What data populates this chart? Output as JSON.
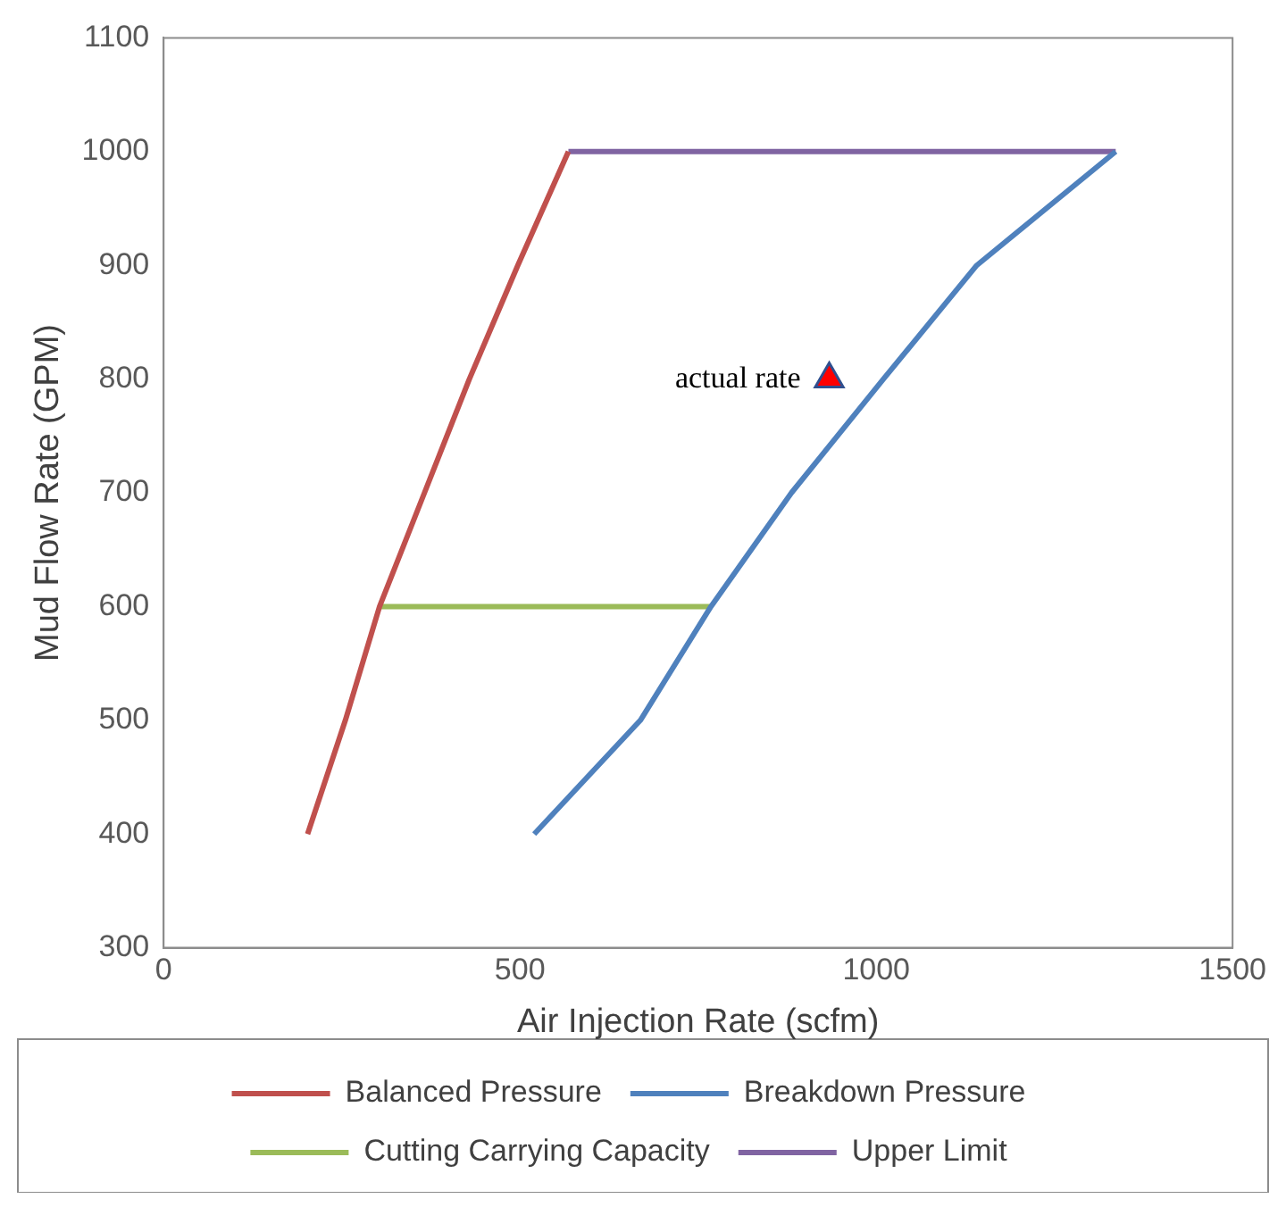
{
  "chart_data": {
    "type": "line",
    "xlabel": "Air Injection Rate (scfm)",
    "ylabel": "Mud Flow Rate (GPM)",
    "xlim": [
      0,
      1500
    ],
    "xticks": [
      0,
      500,
      1000,
      1500
    ],
    "ylim": [
      300,
      1100
    ],
    "yticks": [
      300,
      400,
      500,
      600,
      700,
      800,
      900,
      1000,
      1100
    ],
    "grid": false,
    "legend": "bottom",
    "marker": "none",
    "line_style": "solid",
    "series": [
      {
        "name": "Balanced Pressure",
        "color": "#c0504d",
        "x": [
          202,
          255,
          303,
          366,
          429,
          497,
          568
        ],
        "values": [
          400,
          500,
          600,
          700,
          800,
          900,
          1000
        ]
      },
      {
        "name": "Breakdown Pressure",
        "color": "#4f81bd",
        "x": [
          520,
          669,
          768,
          881,
          1010,
          1141,
          1336
        ],
        "values": [
          400,
          500,
          600,
          700,
          800,
          900,
          1000
        ]
      },
      {
        "name": "Cutting Carrying Capacity",
        "color": "#9bbb59",
        "x": [
          303,
          768
        ],
        "values": [
          600,
          600
        ]
      },
      {
        "name": "Upper Limit",
        "color": "#8064a2",
        "x": [
          568,
          1336
        ],
        "values": [
          1000,
          1000
        ]
      },
      {
        "type": "scatter",
        "color": "#ff0000",
        "marker": "triangle",
        "x": [
          934
        ],
        "values": [
          800
        ]
      }
    ],
    "annotations": [
      {
        "text": "actual rate",
        "x": 934,
        "y": 800
      }
    ]
  }
}
